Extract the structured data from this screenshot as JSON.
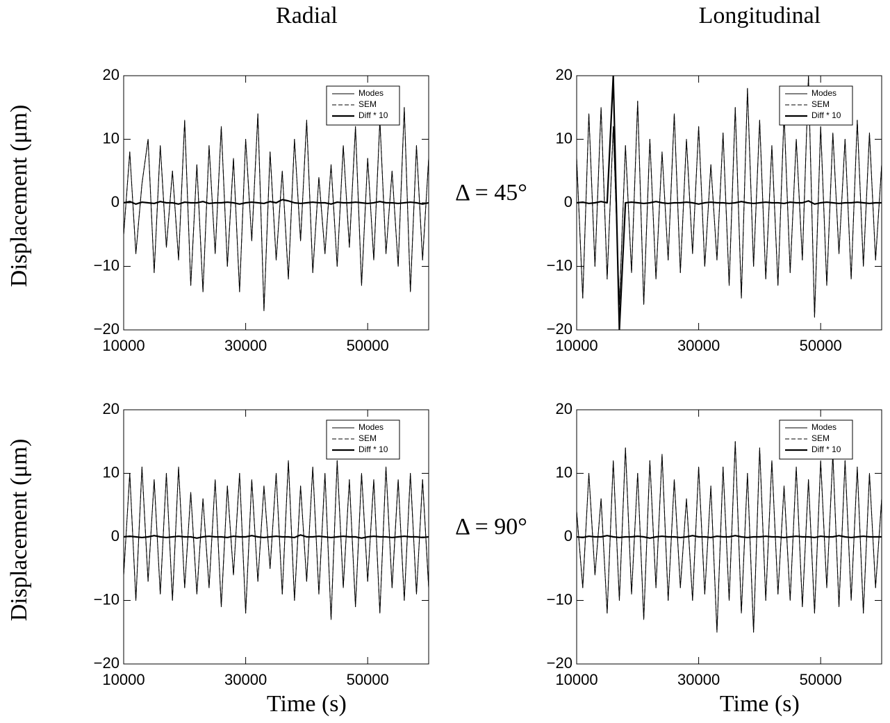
{
  "chart_data": [
    {
      "type": "line",
      "title": "Radial",
      "ylabel": "Displacement (μm)",
      "annotation": "Δ = 45°",
      "legend": "upper right",
      "x": [
        10000,
        11000,
        12000,
        13000,
        14000,
        15000,
        16000,
        17000,
        18000,
        19000,
        20000,
        21000,
        22000,
        23000,
        24000,
        25000,
        26000,
        27000,
        28000,
        29000,
        30000,
        31000,
        32000,
        33000,
        34000,
        35000,
        36000,
        37000,
        38000,
        39000,
        40000,
        41000,
        42000,
        43000,
        44000,
        45000,
        46000,
        47000,
        48000,
        49000,
        50000,
        51000,
        52000,
        53000,
        54000,
        55000,
        56000,
        57000,
        58000,
        59000,
        60000
      ],
      "xlim": [
        10000,
        60000
      ],
      "xticks": [
        10000,
        30000,
        50000
      ],
      "ylim": [
        -20,
        20
      ],
      "yticks": [
        {
          "value": -20,
          "label": "−20"
        },
        {
          "value": -10,
          "label": "−10"
        },
        0,
        10,
        20
      ],
      "series": [
        {
          "name": "Modes",
          "color": "#000000",
          "linestyle": "solid",
          "values": [
            -5,
            8,
            -8,
            3,
            10,
            -11,
            9,
            -7,
            5,
            -9,
            13,
            -13,
            6,
            -14,
            9,
            -8,
            12,
            -10,
            7,
            -14,
            10,
            -6,
            14,
            -17,
            8,
            -9,
            5,
            -12,
            10,
            -6,
            13,
            -11,
            4,
            -8,
            6,
            -10,
            9,
            -7,
            12,
            -13,
            7,
            -9,
            13,
            -8,
            5,
            -10,
            15,
            -14,
            9,
            -9,
            7
          ]
        },
        {
          "name": "SEM",
          "color": "#000000",
          "linestyle": "dashed",
          "values": [
            -5,
            8,
            -8,
            3,
            10,
            -11,
            9,
            -7,
            5,
            -9,
            13,
            -13,
            6,
            -14,
            9,
            -8,
            12,
            -10,
            7,
            -14,
            10,
            -6,
            14,
            -17,
            8,
            -9,
            5,
            -12,
            10,
            -6,
            13,
            -11,
            4,
            -8,
            6,
            -10,
            9,
            -7,
            12,
            -13,
            7,
            -9,
            13,
            -8,
            5,
            -10,
            15,
            -14,
            9,
            -9,
            7
          ]
        },
        {
          "name": "Diff * 10",
          "color": "#000000",
          "linestyle": "bold",
          "values": [
            0,
            0.2,
            -0.2,
            0.1,
            0,
            -0.1,
            0.2,
            0,
            0,
            -0.2,
            0.1,
            0,
            0,
            0.2,
            -0.1,
            0,
            0,
            0.1,
            0,
            -0.2,
            0,
            0.1,
            0,
            -0.1,
            0.2,
            0,
            0.5,
            0.3,
            0,
            -0.1,
            0,
            0.1,
            0,
            0,
            -0.2,
            0.1,
            0,
            0,
            0.1,
            0,
            -0.1,
            0,
            0.2,
            0,
            0,
            -0.1,
            0,
            0.1,
            0,
            -0.2,
            0
          ]
        }
      ]
    },
    {
      "type": "line",
      "title": "Longitudinal",
      "legend": "upper right",
      "x": [
        10000,
        11000,
        12000,
        13000,
        14000,
        15000,
        16000,
        17000,
        18000,
        19000,
        20000,
        21000,
        22000,
        23000,
        24000,
        25000,
        26000,
        27000,
        28000,
        29000,
        30000,
        31000,
        32000,
        33000,
        34000,
        35000,
        36000,
        37000,
        38000,
        39000,
        40000,
        41000,
        42000,
        43000,
        44000,
        45000,
        46000,
        47000,
        48000,
        49000,
        50000,
        51000,
        52000,
        53000,
        54000,
        55000,
        56000,
        57000,
        58000,
        59000,
        60000
      ],
      "xlim": [
        10000,
        60000
      ],
      "xticks": [
        10000,
        30000,
        50000
      ],
      "ylim": [
        -20,
        20
      ],
      "yticks": [
        {
          "value": -20,
          "label": "−20"
        },
        {
          "value": -10,
          "label": "−10"
        },
        0,
        10,
        20
      ],
      "series": [
        {
          "name": "Modes",
          "color": "#000000",
          "linestyle": "solid",
          "values": [
            7,
            -15,
            14,
            -10,
            15,
            -12,
            12,
            -16,
            9,
            -11,
            16,
            -16,
            10,
            -12,
            8,
            -9,
            14,
            -11,
            10,
            -8,
            12,
            -10,
            6,
            -9,
            11,
            -13,
            15,
            -15,
            18,
            -10,
            13,
            -12,
            9,
            -13,
            14,
            -11,
            10,
            -9,
            20,
            -18,
            12,
            -13,
            11,
            -8,
            10,
            -12,
            13,
            -10,
            11,
            -9,
            6
          ]
        },
        {
          "name": "SEM",
          "color": "#000000",
          "linestyle": "dashed",
          "values": [
            7,
            -15,
            14,
            -10,
            15,
            -12,
            12,
            -16,
            9,
            -11,
            16,
            -16,
            10,
            -12,
            8,
            -9,
            14,
            -11,
            10,
            -8,
            12,
            -10,
            6,
            -9,
            11,
            -13,
            15,
            -15,
            18,
            -10,
            13,
            -12,
            9,
            -13,
            14,
            -11,
            10,
            -9,
            20,
            -18,
            12,
            -13,
            11,
            -8,
            10,
            -12,
            13,
            -10,
            11,
            -9,
            6
          ]
        },
        {
          "name": "Diff * 10",
          "color": "#000000",
          "linestyle": "bold",
          "values": [
            0,
            0.1,
            -0.1,
            0,
            0.2,
            0,
            20,
            -20,
            0,
            0.1,
            0,
            -0.1,
            0,
            0.2,
            0,
            -0.1,
            0,
            0,
            0.1,
            0,
            -0.2,
            0,
            0.1,
            0,
            0,
            -0.1,
            0,
            0.2,
            0,
            -0.1,
            0,
            0.1,
            0,
            0,
            -0.1,
            0.1,
            0,
            0,
            0.3,
            -0.2,
            0,
            0.1,
            0,
            -0.1,
            0,
            0,
            0.1,
            0,
            -0.1,
            0,
            0
          ]
        }
      ]
    },
    {
      "type": "line",
      "xlabel": "Time (s)",
      "ylabel": "Displacement (μm)",
      "annotation": "Δ = 90°",
      "legend": "upper right",
      "x": [
        10000,
        11000,
        12000,
        13000,
        14000,
        15000,
        16000,
        17000,
        18000,
        19000,
        20000,
        21000,
        22000,
        23000,
        24000,
        25000,
        26000,
        27000,
        28000,
        29000,
        30000,
        31000,
        32000,
        33000,
        34000,
        35000,
        36000,
        37000,
        38000,
        39000,
        40000,
        41000,
        42000,
        43000,
        44000,
        45000,
        46000,
        47000,
        48000,
        49000,
        50000,
        51000,
        52000,
        53000,
        54000,
        55000,
        56000,
        57000,
        58000,
        59000,
        60000
      ],
      "xlim": [
        10000,
        60000
      ],
      "xticks": [
        10000,
        30000,
        50000
      ],
      "ylim": [
        -20,
        20
      ],
      "yticks": [
        {
          "value": -20,
          "label": "−20"
        },
        {
          "value": -10,
          "label": "−10"
        },
        0,
        10,
        20
      ],
      "series": [
        {
          "name": "Modes",
          "color": "#000000",
          "linestyle": "solid",
          "values": [
            -6,
            10,
            -10,
            11,
            -7,
            9,
            -9,
            10,
            -10,
            11,
            -8,
            7,
            -9,
            6,
            -8,
            9,
            -11,
            8,
            -6,
            10,
            -12,
            9,
            -7,
            8,
            -5,
            10,
            -9,
            12,
            -10,
            8,
            -7,
            11,
            -9,
            10,
            -13,
            12,
            -8,
            9,
            -11,
            10,
            -7,
            9,
            -12,
            11,
            -8,
            9,
            -10,
            10,
            -9,
            9,
            -8
          ]
        },
        {
          "name": "SEM",
          "color": "#000000",
          "linestyle": "dashed",
          "values": [
            -6,
            10,
            -10,
            11,
            -7,
            9,
            -9,
            10,
            -10,
            11,
            -8,
            7,
            -9,
            6,
            -8,
            9,
            -11,
            8,
            -6,
            10,
            -12,
            9,
            -7,
            8,
            -5,
            10,
            -9,
            12,
            -10,
            8,
            -7,
            11,
            -9,
            10,
            -13,
            12,
            -8,
            9,
            -11,
            10,
            -7,
            9,
            -12,
            11,
            -8,
            9,
            -10,
            10,
            -9,
            9,
            -8
          ]
        },
        {
          "name": "Diff * 10",
          "color": "#000000",
          "linestyle": "bold",
          "values": [
            0,
            0.1,
            0,
            -0.1,
            0,
            0.2,
            0,
            -0.1,
            0,
            0.1,
            0,
            0,
            -0.2,
            0,
            0.1,
            0,
            0,
            -0.1,
            0.1,
            0,
            0,
            0.2,
            0,
            -0.1,
            0,
            0.1,
            0,
            0,
            -0.1,
            0.3,
            0,
            0,
            0.1,
            0,
            -0.1,
            0,
            0.1,
            0,
            0,
            -0.2,
            0,
            0.1,
            0,
            0,
            -0.1,
            0,
            0.1,
            0,
            0,
            -0.1,
            0
          ]
        }
      ]
    },
    {
      "type": "line",
      "xlabel": "Time (s)",
      "legend": "upper right",
      "x": [
        10000,
        11000,
        12000,
        13000,
        14000,
        15000,
        16000,
        17000,
        18000,
        19000,
        20000,
        21000,
        22000,
        23000,
        24000,
        25000,
        26000,
        27000,
        28000,
        29000,
        30000,
        31000,
        32000,
        33000,
        34000,
        35000,
        36000,
        37000,
        38000,
        39000,
        40000,
        41000,
        42000,
        43000,
        44000,
        45000,
        46000,
        47000,
        48000,
        49000,
        50000,
        51000,
        52000,
        53000,
        54000,
        55000,
        56000,
        57000,
        58000,
        59000,
        60000
      ],
      "xlim": [
        10000,
        60000
      ],
      "xticks": [
        10000,
        30000,
        50000
      ],
      "ylim": [
        -20,
        20
      ],
      "yticks": [
        {
          "value": -20,
          "label": "−20"
        },
        {
          "value": -10,
          "label": "−10"
        },
        0,
        10,
        20
      ],
      "series": [
        {
          "name": "Modes",
          "color": "#000000",
          "linestyle": "solid",
          "values": [
            4,
            -8,
            10,
            -6,
            6,
            -12,
            12,
            -10,
            14,
            -9,
            10,
            -13,
            12,
            -8,
            13,
            -10,
            9,
            -8,
            6,
            -10,
            11,
            -9,
            8,
            -15,
            11,
            -10,
            15,
            -12,
            10,
            -15,
            14,
            -10,
            12,
            -9,
            8,
            -10,
            11,
            -11,
            9,
            -12,
            12,
            -8,
            13,
            -11,
            12,
            -10,
            11,
            -12,
            10,
            -8,
            6
          ]
        },
        {
          "name": "SEM",
          "color": "#000000",
          "linestyle": "dashed",
          "values": [
            4,
            -8,
            10,
            -6,
            6,
            -12,
            12,
            -10,
            14,
            -9,
            10,
            -13,
            12,
            -8,
            13,
            -10,
            9,
            -8,
            6,
            -10,
            11,
            -9,
            8,
            -15,
            11,
            -10,
            15,
            -12,
            10,
            -15,
            14,
            -10,
            12,
            -9,
            8,
            -10,
            11,
            -11,
            9,
            -12,
            12,
            -8,
            13,
            -11,
            12,
            -10,
            11,
            -12,
            10,
            -8,
            6
          ]
        },
        {
          "name": "Diff * 10",
          "color": "#000000",
          "linestyle": "bold",
          "values": [
            0,
            -0.1,
            0.1,
            0,
            0,
            0.2,
            0,
            -0.1,
            0,
            0,
            0.1,
            0,
            -0.2,
            0,
            0.1,
            0,
            0,
            -0.1,
            0,
            0.2,
            0,
            0,
            -0.1,
            0.1,
            0,
            0,
            0.2,
            0,
            -0.1,
            0,
            0,
            0.1,
            0,
            0,
            -0.1,
            0,
            0.1,
            0,
            0,
            -0.1,
            0.1,
            0,
            0,
            0.2,
            0,
            -0.1,
            0,
            0.1,
            0,
            0,
            0
          ]
        }
      ]
    }
  ]
}
